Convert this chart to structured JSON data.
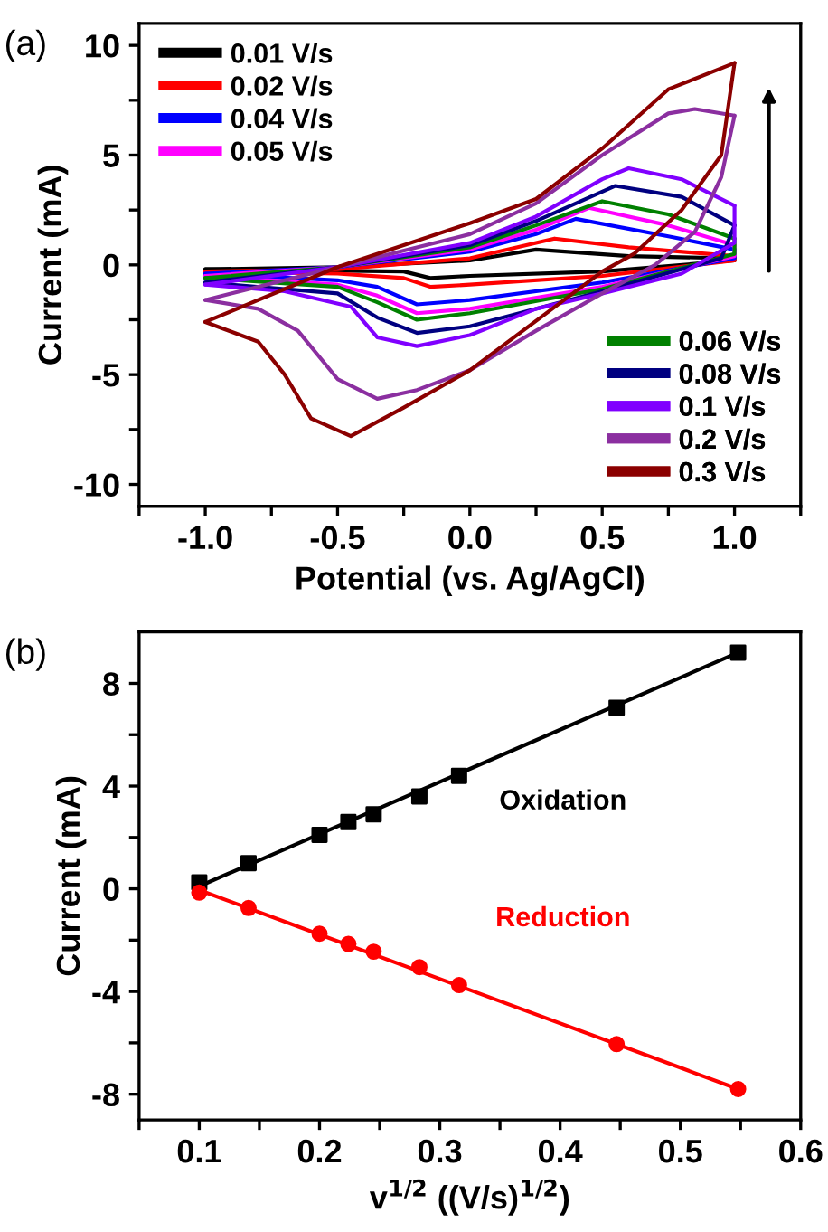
{
  "chart_data": [
    {
      "type": "line",
      "title": "(a)",
      "xlabel": "Potential (vs. Ag/AgCl)",
      "ylabel": "Current (mA)",
      "xlim": [
        -1.25,
        1.25
      ],
      "ylim": [
        -11,
        11
      ],
      "xticks": [
        {
          "value": -1.25,
          "label": null
        },
        {
          "value": -1,
          "label": "-1.0"
        },
        {
          "value": -0.75,
          "label": null
        },
        -0.5,
        {
          "value": -0.25,
          "label": null
        },
        {
          "value": 0,
          "label": "0.0"
        },
        {
          "value": 0.25,
          "label": null
        },
        0.5,
        {
          "value": 0.75,
          "label": null
        },
        {
          "value": 1,
          "label": "1.0"
        },
        {
          "value": 1.25,
          "label": null
        }
      ],
      "yticks": [
        -10,
        {
          "value": -7.5,
          "label": null
        },
        -5,
        {
          "value": -2.5,
          "label": null
        },
        0,
        {
          "value": 2.5,
          "label": null
        },
        5,
        {
          "value": 7.5,
          "label": null
        },
        10
      ],
      "legend": [
        "top left",
        "bottom right"
      ],
      "grid": false,
      "marker": "none",
      "line_style": "solid",
      "series": [
        {
          "name": "0.01 V/s",
          "color": "#000000",
          "x": [
            -1,
            -0.5,
            0,
            0.25,
            0.6,
            1,
            1,
            0.5,
            0,
            -0.15,
            -0.25,
            -1
          ],
          "values": [
            -0.2,
            -0.1,
            0.2,
            0.7,
            0.4,
            0.3,
            0.2,
            -0.3,
            -0.5,
            -0.6,
            -0.3,
            -0.2
          ]
        },
        {
          "name": "0.02 V/s",
          "color": "#ff0000",
          "x": [
            -1,
            -0.5,
            0,
            0.32,
            0.6,
            1,
            1,
            0.5,
            0,
            -0.15,
            -0.25,
            -0.5,
            -1
          ],
          "values": [
            -0.3,
            -0.2,
            0.3,
            1.2,
            0.8,
            0.4,
            0.2,
            -0.5,
            -0.9,
            -1.0,
            -0.6,
            -0.4,
            -0.3
          ]
        },
        {
          "name": "0.04 V/s",
          "color": "#0000ff",
          "x": [
            -1,
            -0.5,
            0,
            0.25,
            0.4,
            0.75,
            1,
            1,
            0.5,
            0,
            -0.2,
            -0.35,
            -0.5,
            -1
          ],
          "values": [
            -0.4,
            -0.1,
            0.6,
            1.4,
            2.1,
            1.3,
            0.7,
            0.3,
            -0.8,
            -1.6,
            -1.8,
            -1.0,
            -0.7,
            -0.4
          ]
        },
        {
          "name": "0.05 V/s",
          "color": "#ff00ff",
          "x": [
            -1,
            -0.5,
            0,
            0.25,
            0.45,
            0.75,
            1,
            1,
            0.5,
            0,
            -0.2,
            -0.35,
            -0.5,
            -1
          ],
          "values": [
            -0.5,
            -0.1,
            0.7,
            1.6,
            2.6,
            1.8,
            0.9,
            0.4,
            -1.0,
            -2.0,
            -2.2,
            -1.4,
            -0.9,
            -0.5
          ]
        },
        {
          "name": "0.06 V/s",
          "color": "#008000",
          "x": [
            -1,
            -0.5,
            0,
            0.25,
            0.5,
            0.75,
            1,
            1,
            0.5,
            0,
            -0.2,
            -0.35,
            -0.5,
            -1
          ],
          "values": [
            -0.6,
            -0.1,
            0.8,
            1.8,
            2.9,
            2.3,
            1.2,
            0.5,
            -1.1,
            -2.2,
            -2.5,
            -1.7,
            -1.0,
            -0.6
          ]
        },
        {
          "name": "0.08 V/s",
          "color": "#000080",
          "x": [
            -1,
            -0.5,
            0,
            0.25,
            0.55,
            0.8,
            1,
            0.95,
            0.5,
            0,
            -0.2,
            -0.35,
            -0.5,
            -1
          ],
          "values": [
            -0.8,
            -0.1,
            0.9,
            2.0,
            3.6,
            3.1,
            1.8,
            0.3,
            -1.2,
            -2.8,
            -3.1,
            -2.4,
            -1.3,
            -0.8
          ]
        },
        {
          "name": "0.1 V/s",
          "color": "#8000ff",
          "x": [
            -1,
            -0.5,
            0,
            0.25,
            0.5,
            0.6,
            0.8,
            1,
            1,
            0.8,
            0.5,
            0.25,
            0,
            -0.2,
            -0.35,
            -0.45,
            -0.7,
            -1
          ],
          "values": [
            -0.9,
            -0.1,
            1.0,
            2.2,
            3.9,
            4.4,
            3.9,
            2.7,
            1.0,
            -0.4,
            -1.3,
            -2.0,
            -3.2,
            -3.7,
            -3.3,
            -1.9,
            -1.2,
            -0.9
          ]
        },
        {
          "name": "0.2 V/s",
          "color": "#8b2fa0",
          "x": [
            -1,
            -0.5,
            0,
            0.25,
            0.5,
            0.75,
            0.85,
            1,
            0.95,
            0.85,
            0.7,
            0.5,
            0.25,
            0,
            -0.2,
            -0.35,
            -0.5,
            -0.65,
            -0.8,
            -1
          ],
          "values": [
            -1.6,
            -0.1,
            1.4,
            2.8,
            5.0,
            6.9,
            7.1,
            6.8,
            4.0,
            1.5,
            0,
            -1.3,
            -3.0,
            -4.8,
            -5.7,
            -6.1,
            -5.2,
            -3.0,
            -2.0,
            -1.6
          ]
        },
        {
          "name": "0.3 V/s",
          "color": "#8b0000",
          "x": [
            -1,
            -0.5,
            0,
            0.25,
            0.5,
            0.75,
            1,
            0.95,
            0.8,
            0.62,
            0.5,
            0,
            -0.25,
            -0.45,
            -0.6,
            -0.7,
            -0.8,
            -1
          ],
          "values": [
            -2.6,
            -0.1,
            1.9,
            3.0,
            5.3,
            8.0,
            9.2,
            5.0,
            2.5,
            0.5,
            -0.3,
            -4.8,
            -6.5,
            -7.8,
            -7.0,
            -5.0,
            -3.5,
            -2.6
          ]
        }
      ]
    },
    {
      "type": "scatter",
      "title": "(b)",
      "xlabel": "v$^{1/2}$ ((V/s)$^{1/2}$)",
      "ylabel": "Current (mA)",
      "xlim": [
        0.05,
        0.6
      ],
      "ylim": [
        -9,
        10
      ],
      "xticks": [
        {
          "value": 0.05,
          "label": null
        },
        0.1,
        {
          "value": 0.15,
          "label": null
        },
        0.2,
        {
          "value": 0.25,
          "label": null
        },
        0.3,
        {
          "value": 0.35,
          "label": null
        },
        0.4,
        {
          "value": 0.45,
          "label": null
        },
        0.5,
        {
          "value": 0.55,
          "label": null
        },
        0.6
      ],
      "yticks": [
        -8,
        {
          "value": -6,
          "label": null
        },
        -4,
        {
          "value": -2,
          "label": null
        },
        0,
        {
          "value": 2,
          "label": null
        },
        4,
        {
          "value": 6,
          "label": null
        },
        8
      ],
      "grid": false,
      "series": [
        {
          "type": "line",
          "color": "#000000",
          "x": [
            0.1,
            0.548
          ],
          "values": [
            0.1,
            9.2
          ],
          "marker": "none"
        },
        {
          "type": "line",
          "color": "#ff0000",
          "x": [
            0.1,
            0.548
          ],
          "values": [
            -0.05,
            -7.8
          ],
          "marker": "none"
        },
        {
          "name": "Oxidation",
          "color": "#000000",
          "marker": "square",
          "x": [
            0.1,
            0.141,
            0.2,
            0.224,
            0.245,
            0.283,
            0.316,
            0.447,
            0.548
          ],
          "values": [
            0.25,
            1.0,
            2.1,
            2.6,
            2.9,
            3.6,
            4.4,
            7.05,
            9.2
          ]
        },
        {
          "name": "Reduction",
          "color": "#ff0000",
          "marker": "circle",
          "x": [
            0.1,
            0.141,
            0.2,
            0.224,
            0.245,
            0.283,
            0.316,
            0.447,
            0.548
          ],
          "values": [
            -0.15,
            -0.75,
            -1.75,
            -2.15,
            -2.45,
            -3.05,
            -3.75,
            -6.05,
            -7.8
          ]
        }
      ]
    }
  ]
}
